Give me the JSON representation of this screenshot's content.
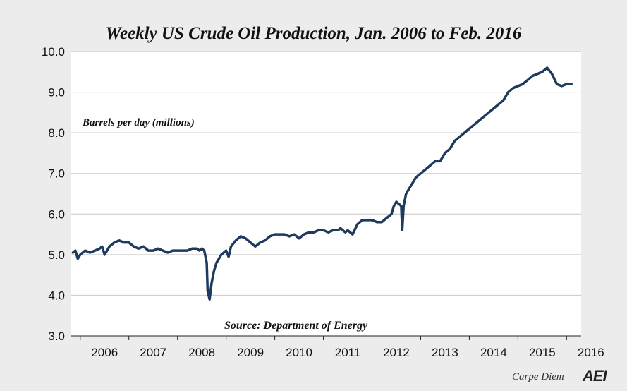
{
  "chart_data": {
    "type": "line",
    "title": "Weekly US Crude Oil Production, Jan. 2006 to Feb. 2016",
    "ylabel": "Barrels per day (millions)",
    "source": "Source: Department of Energy",
    "ylim": [
      3.0,
      10.0
    ],
    "xlim": [
      2005.8,
      2016.3
    ],
    "yticks": [
      "10.0",
      "9.0",
      "8.0",
      "7.0",
      "6.0",
      "5.0",
      "4.0",
      "3.0"
    ],
    "xticks": [
      "2006",
      "2007",
      "2008",
      "2009",
      "2010",
      "2011",
      "2012",
      "2013",
      "2014",
      "2015",
      "2016"
    ],
    "grid": true,
    "line_color": "#1f3a5f",
    "series": [
      {
        "x": [
          2005.85,
          2005.9,
          2005.95,
          2006.0,
          2006.1,
          2006.2,
          2006.3,
          2006.4,
          2006.45,
          2006.5,
          2006.6,
          2006.7,
          2006.8,
          2006.9,
          2006.95,
          2007.0,
          2007.1,
          2007.2,
          2007.3,
          2007.4,
          2007.5,
          2007.6,
          2007.7,
          2007.8,
          2007.9,
          2008.0,
          2008.1,
          2008.2,
          2008.3,
          2008.4,
          2008.45,
          2008.5,
          2008.55,
          2008.6,
          2008.62,
          2008.66,
          2008.7,
          2008.75,
          2008.8,
          2008.9,
          2009.0,
          2009.05,
          2009.1,
          2009.2,
          2009.3,
          2009.4,
          2009.5,
          2009.6,
          2009.7,
          2009.8,
          2009.9,
          2010.0,
          2010.1,
          2010.2,
          2010.3,
          2010.4,
          2010.5,
          2010.6,
          2010.7,
          2010.8,
          2010.9,
          2011.0,
          2011.1,
          2011.2,
          2011.25,
          2011.3,
          2011.35,
          2011.4,
          2011.45,
          2011.5,
          2011.6,
          2011.7,
          2011.8,
          2011.9,
          2012.0,
          2012.1,
          2012.2,
          2012.3,
          2012.4,
          2012.45,
          2012.5,
          2012.55,
          2012.6,
          2012.62,
          2012.65,
          2012.7,
          2012.8,
          2012.9,
          2013.0,
          2013.1,
          2013.2,
          2013.3,
          2013.4,
          2013.5,
          2013.6,
          2013.7,
          2013.8,
          2013.9,
          2014.0,
          2014.1,
          2014.2,
          2014.3,
          2014.4,
          2014.5,
          2014.6,
          2014.7,
          2014.8,
          2014.9,
          2015.0,
          2015.1,
          2015.15,
          2015.2,
          2015.3,
          2015.4,
          2015.5,
          2015.6,
          2015.7,
          2015.8,
          2015.9,
          2016.0,
          2016.1
        ],
        "y": [
          5.05,
          5.1,
          4.9,
          5.0,
          5.1,
          5.05,
          5.1,
          5.15,
          5.2,
          5.0,
          5.2,
          5.3,
          5.35,
          5.3,
          5.3,
          5.3,
          5.2,
          5.15,
          5.2,
          5.1,
          5.1,
          5.15,
          5.1,
          5.05,
          5.1,
          5.1,
          5.1,
          5.1,
          5.15,
          5.15,
          5.1,
          5.15,
          5.1,
          4.8,
          4.1,
          3.9,
          4.3,
          4.6,
          4.8,
          5.0,
          5.1,
          4.95,
          5.2,
          5.35,
          5.45,
          5.4,
          5.3,
          5.2,
          5.3,
          5.35,
          5.45,
          5.5,
          5.5,
          5.5,
          5.45,
          5.5,
          5.4,
          5.5,
          5.55,
          5.55,
          5.6,
          5.6,
          5.55,
          5.6,
          5.6,
          5.6,
          5.65,
          5.6,
          5.55,
          5.6,
          5.5,
          5.75,
          5.85,
          5.85,
          5.85,
          5.8,
          5.8,
          5.9,
          6.0,
          6.2,
          6.3,
          6.25,
          6.2,
          5.6,
          6.2,
          6.5,
          6.7,
          6.9,
          7.0,
          7.1,
          7.2,
          7.3,
          7.3,
          7.5,
          7.6,
          7.8,
          7.9,
          8.0,
          8.1,
          8.2,
          8.3,
          8.4,
          8.5,
          8.6,
          8.7,
          8.8,
          9.0,
          9.1,
          9.15,
          9.2,
          9.25,
          9.3,
          9.4,
          9.45,
          9.5,
          9.6,
          9.45,
          9.2,
          9.15,
          9.2,
          9.2
        ]
      }
    ]
  },
  "brand": {
    "text": "Carpe Diem",
    "logo": "AEI"
  }
}
